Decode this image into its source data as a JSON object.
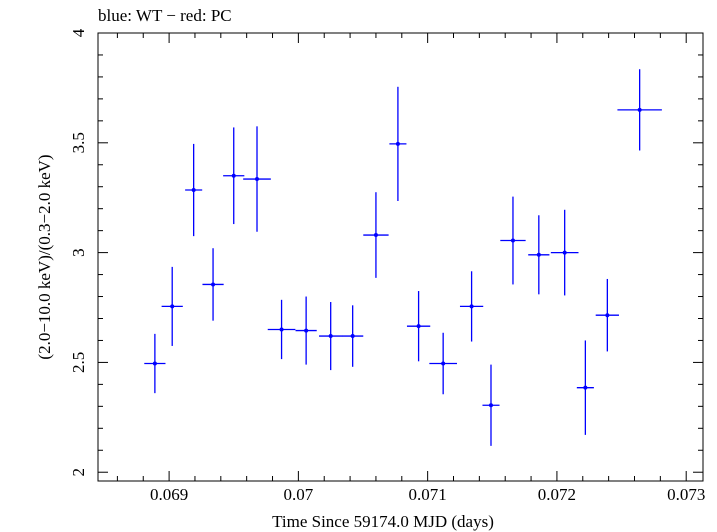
{
  "chart_data": {
    "type": "scatter",
    "title": "blue: WT − red: PC",
    "xlabel": "Time Since 59174.0 MJD (days)",
    "ylabel": "(2.0−10.0 keV)/(0.3−2.0 keV)",
    "xlim": [
      0.06845,
      0.07313
    ],
    "ylim": [
      1.96,
      4.0
    ],
    "x_ticks": [
      0.069,
      0.07,
      0.071,
      0.072,
      0.073
    ],
    "x_tick_labels": [
      "0.069",
      "0.07",
      "0.071",
      "0.072",
      "0.073"
    ],
    "y_ticks": [
      2,
      2.5,
      3,
      3.5,
      4
    ],
    "y_tick_labels": [
      "2",
      "2.5",
      "3",
      "3.5",
      "4"
    ],
    "series": [
      {
        "name": "WT",
        "color": "#0000ff",
        "points": [
          {
            "x": 0.06889,
            "xerr": 8.2e-05,
            "y": 2.495,
            "yerr": 0.135
          },
          {
            "x": 0.069024,
            "xerr": 8.2e-05,
            "y": 2.755,
            "yerr": 0.18
          },
          {
            "x": 0.06919,
            "xerr": 6.6e-05,
            "y": 3.285,
            "yerr": 0.21
          },
          {
            "x": 0.06934,
            "xerr": 8.2e-05,
            "y": 2.855,
            "yerr": 0.165
          },
          {
            "x": 0.0695,
            "xerr": 8.2e-05,
            "y": 3.35,
            "yerr": 0.22
          },
          {
            "x": 0.06968,
            "xerr": 0.000107,
            "y": 3.335,
            "yerr": 0.24
          },
          {
            "x": 0.06987,
            "xerr": 0.000107,
            "y": 2.65,
            "yerr": 0.135
          },
          {
            "x": 0.07006,
            "xerr": 8.2e-05,
            "y": 2.645,
            "yerr": 0.155
          },
          {
            "x": 0.07025,
            "xerr": 9e-05,
            "y": 2.62,
            "yerr": 0.155
          },
          {
            "x": 0.07042,
            "xerr": 8.2e-05,
            "y": 2.62,
            "yerr": 0.14
          },
          {
            "x": 0.0706,
            "xerr": 9.8e-05,
            "y": 3.08,
            "yerr": 0.195
          },
          {
            "x": 0.07077,
            "xerr": 6.6e-05,
            "y": 3.495,
            "yerr": 0.26
          },
          {
            "x": 0.07093,
            "xerr": 9e-05,
            "y": 2.665,
            "yerr": 0.16
          },
          {
            "x": 0.07112,
            "xerr": 0.000107,
            "y": 2.495,
            "yerr": 0.14
          },
          {
            "x": 0.07134,
            "xerr": 9e-05,
            "y": 2.755,
            "yerr": 0.16
          },
          {
            "x": 0.07149,
            "xerr": 6.6e-05,
            "y": 2.305,
            "yerr": 0.185
          },
          {
            "x": 0.07166,
            "xerr": 9.8e-05,
            "y": 3.055,
            "yerr": 0.2
          },
          {
            "x": 0.07186,
            "xerr": 8.2e-05,
            "y": 2.99,
            "yerr": 0.18
          },
          {
            "x": 0.07206,
            "xerr": 0.000107,
            "y": 3.0,
            "yerr": 0.195
          },
          {
            "x": 0.07222,
            "xerr": 6.6e-05,
            "y": 2.385,
            "yerr": 0.215
          },
          {
            "x": 0.07239,
            "xerr": 9e-05,
            "y": 2.715,
            "yerr": 0.165
          },
          {
            "x": 0.07264,
            "xerr": 0.000172,
            "y": 3.65,
            "yerr": 0.185
          }
        ]
      }
    ],
    "grid": false
  }
}
